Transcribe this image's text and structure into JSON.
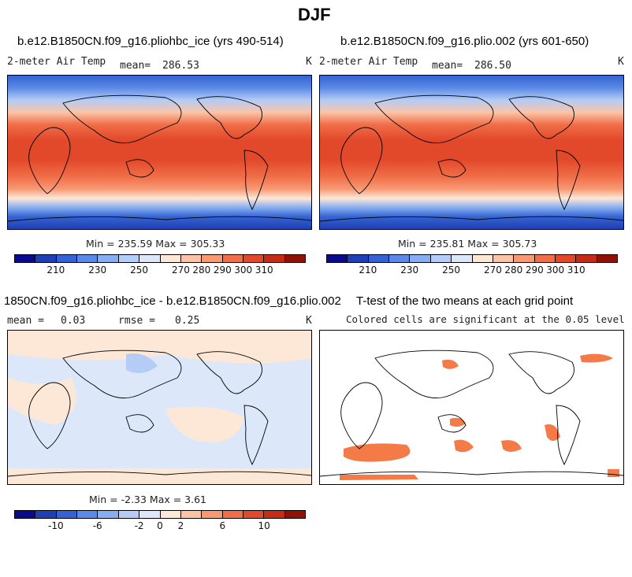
{
  "chart_data": {
    "type": "heatmap",
    "title": "DJF",
    "panels": [
      {
        "id": "ctrl",
        "title": "b.e12.B1850CN.f09_g16.pliohbc_ice (yrs 490-514)",
        "variable": "2-meter Air Temp",
        "mean_label": "mean=",
        "mean": "286.53",
        "units": "K",
        "stats": "Min = 235.59 Max = 305.33",
        "min": 235.59,
        "max": 305.33
      },
      {
        "id": "exp",
        "title": "b.e12.B1850CN.f09_g16.plio.002 (yrs 601-650)",
        "variable": "2-meter Air Temp",
        "mean_label": "mean=",
        "mean": "286.50",
        "units": "K",
        "stats": "Min = 235.81 Max = 305.73",
        "min": 235.81,
        "max": 305.73
      },
      {
        "id": "diff",
        "title": "1850CN.f09_g16.pliohbc_ice - b.e12.B1850CN.f09_g16.plio.002",
        "mean_label": "mean =",
        "mean": "0.03",
        "rmse_label": "rmse =",
        "rmse": "0.25",
        "units": "K",
        "stats": "Min =  -2.33 Max =   3.61",
        "min": -2.33,
        "max": 3.61
      },
      {
        "id": "ttest",
        "title": "T-test of the two means at each grid point",
        "subtitle": "Colored cells are significant at the 0.05 level"
      }
    ],
    "colorbars": {
      "temperature": {
        "tick_labels": [
          "210",
          "230",
          "250",
          "270",
          "280",
          "290",
          "300",
          "310"
        ],
        "colors": [
          "#0a0a8c",
          "#1f3fb4",
          "#3564d2",
          "#5a8ae6",
          "#86aef0",
          "#b4ccf6",
          "#dce8fa",
          "#fde8d8",
          "#fbc4a8",
          "#f79a74",
          "#f06e48",
          "#e2492a",
          "#c42c17",
          "#8e1208"
        ]
      },
      "difference": {
        "tick_labels": [
          "-10",
          "-6",
          "-2",
          "0",
          "2",
          "6",
          "10"
        ],
        "colors": [
          "#0a0a8c",
          "#1f3fb4",
          "#3564d2",
          "#5a8ae6",
          "#86aef0",
          "#b4ccf6",
          "#dce8fa",
          "#fde8d8",
          "#fbc4a8",
          "#f79a74",
          "#f06e48",
          "#e2492a",
          "#c42c17",
          "#8e1208"
        ]
      },
      "significance_color": "#f47a48"
    }
  }
}
